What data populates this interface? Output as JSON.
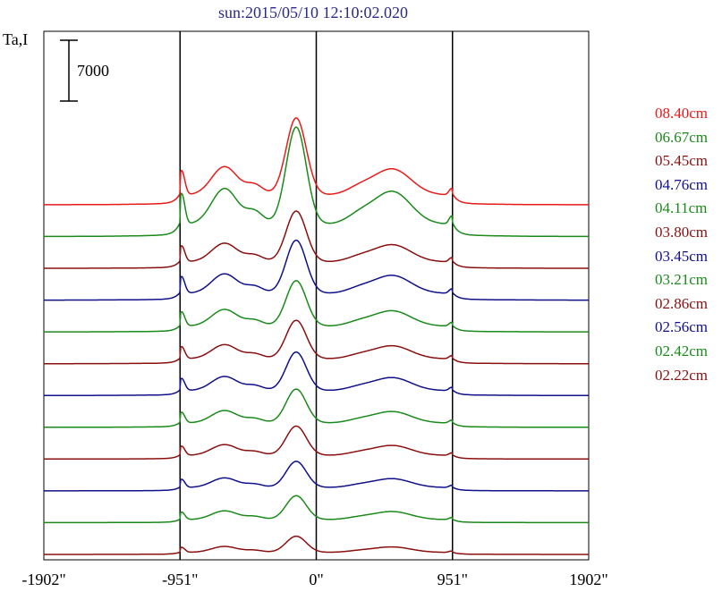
{
  "chart_data": {
    "type": "line",
    "title": "sun:2015/05/10 12:10:02.020",
    "ylabel": "Ta,I",
    "xlabel": "",
    "x_ticks": [
      {
        "value": -1902,
        "label": "-1902\""
      },
      {
        "value": -951,
        "label": "-951\""
      },
      {
        "value": 0,
        "label": "0\""
      },
      {
        "value": 951,
        "label": "951\""
      },
      {
        "value": 1902,
        "label": "1902\""
      }
    ],
    "xlim": [
      -1902,
      1902
    ],
    "vertical_lines": [
      -951,
      0,
      951
    ],
    "scale_bar": {
      "label": "7000",
      "value": 7000
    },
    "grid": false,
    "legend_position": "right",
    "series": [
      {
        "name": "08.40cm",
        "color": "#e81a1a",
        "peak": 10000
      },
      {
        "name": "06.67cm",
        "color": "#1a8a1a",
        "peak": 12600
      },
      {
        "name": "05.45cm",
        "color": "#8a1010",
        "peak": 6600
      },
      {
        "name": "04.76cm",
        "color": "#10108a",
        "peak": 6900
      },
      {
        "name": "04.11cm",
        "color": "#1a8a1a",
        "peak": 5900
      },
      {
        "name": "03.80cm",
        "color": "#8a1010",
        "peak": 5000
      },
      {
        "name": "03.45cm",
        "color": "#10108a",
        "peak": 5000
      },
      {
        "name": "03.21cm",
        "color": "#1a8a1a",
        "peak": 4400
      },
      {
        "name": "02.86cm",
        "color": "#8a1010",
        "peak": 3800
      },
      {
        "name": "02.56cm",
        "color": "#10108a",
        "peak": 3400
      },
      {
        "name": "02.42cm",
        "color": "#1a8a1a",
        "peak": 3100
      },
      {
        "name": "02.22cm",
        "color": "#8a1010",
        "peak": 2100
      }
    ]
  }
}
